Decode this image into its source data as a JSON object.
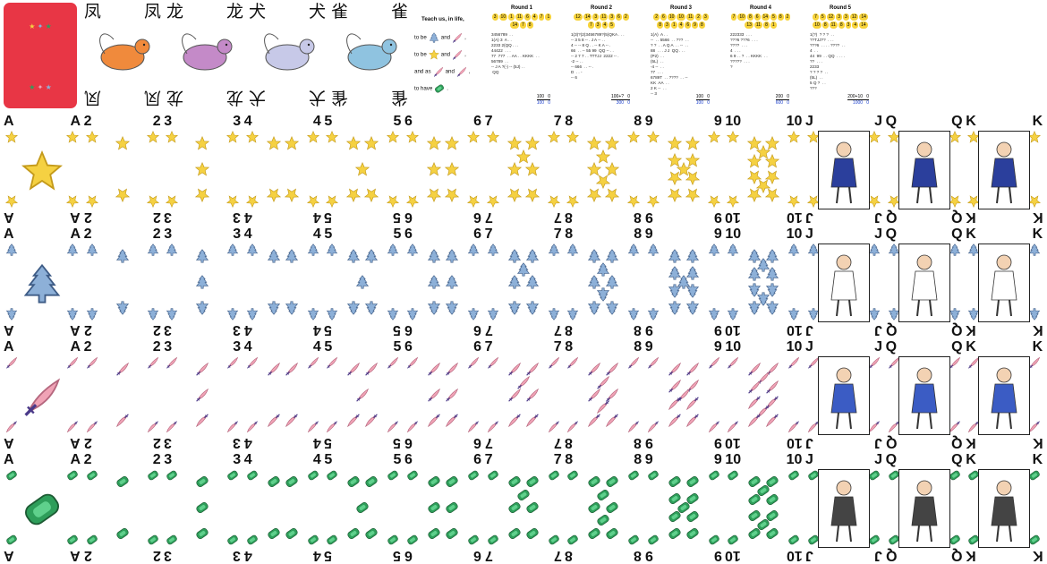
{
  "card_back": {
    "row1": [
      "★",
      "✦",
      "★"
    ],
    "row2": [
      "★",
      "✦",
      "★"
    ]
  },
  "beasts": [
    {
      "glyph": "凤",
      "creature": "phoenix"
    },
    {
      "glyph": "龙",
      "creature": "dragon"
    },
    {
      "glyph": "犬",
      "creature": "dog"
    },
    {
      "glyph": "雀",
      "creature": "sparrow"
    }
  ],
  "motto": {
    "title": "Teach us, in life,",
    "lines": [
      {
        "pre": "to be",
        "post": "and",
        "end": ","
      },
      {
        "pre": "to be",
        "post": "and",
        "end": ","
      },
      {
        "pre": "and as",
        "post": "and",
        "end": ","
      },
      {
        "pre": "to have",
        "post": "",
        "end": "."
      }
    ]
  },
  "rounds": [
    {
      "title": "Round 1",
      "chips": [
        "3",
        "10",
        "1",
        "11",
        "6",
        "4",
        "7",
        "1",
        "14",
        "7",
        "8"
      ],
      "notes": "3456789  . .\n1(A) 3  A . .\n2233 2(QQ . . .\n44422  . . .\n77  777  . . AA . . KKKK  . .\n56789  . .\n-- J A ?(-) -- (5J) . .\n QQ",
      "score_top": "100",
      "score_top_r": "0",
      "score_bottom": "100",
      "score_bottom_r": "0"
    },
    {
      "title": "Round 2",
      "chips": [
        "12",
        "14",
        "3",
        "11",
        "3",
        "6",
        "2",
        "7",
        "3",
        "4",
        "5"
      ],
      "notes": "1(3)?(2)3456789?(5)QKA . . .\n-- 3 5 8 -- . J A -- . .\n4 -- -- 8 Q . . -- K A -- .\n66  . . -- 55 99  QQ -- . .\n-- 2 7 7 . . TTTJJ  2222 -- .\n-2 -- . .\n-- 666  . . -- .\nD  . . -\n-- 6",
      "score_top": "100+?",
      "score_top_r": "0",
      "score_bottom": "300",
      "score_bottom_r": "0"
    },
    {
      "title": "Round 3",
      "chips": [
        "2",
        "6",
        "10",
        "10",
        "11",
        "2",
        "3",
        "8",
        "3",
        "1",
        "4",
        "6",
        "9",
        "8"
      ],
      "notes": "1(A)  A . .\n--  . . 5566  . . ???  . .\n? ?  . . A Q A  . . --  . .\n88  . . . J J  QQ . . .\n(P2)  . .\n(5L)  . .\n-4 --  . .\n77  . . .\n6789T  . . ????  . . --\nKK  AA  . .\n2 K --  . .\n-- 3",
      "score_top": "100",
      "score_top_r": "0",
      "score_bottom": "100",
      "score_bottom_r": "0"
    },
    {
      "title": "Round 4",
      "chips": [
        "7",
        "10",
        "8",
        "6",
        "14",
        "5",
        "8",
        "2",
        "13",
        "11",
        "8",
        "1"
      ],
      "notes": "222333  . . .\n???6 ???6  . . .\n????  . . .\n4  . . .\n6 9 . . ?  . . KKKK  . .\n?????  . . .\n?",
      "score_top": "200",
      "score_top_r": "0",
      "score_bottom": "600",
      "score_bottom_r": "0"
    },
    {
      "title": "Round 5",
      "chips": [
        "7",
        "5",
        "12",
        "3",
        "3",
        "12",
        "14",
        "10",
        "8",
        "11",
        "8",
        "3",
        "4",
        "14"
      ],
      "notes": "1(?)  ? ? ?  . .\n??TJJ??  . . .\n???6  . . . . ????  . .\n4  . .\n44  99  . . QQ  . . . .\n??  . . .\n2233\n? ? ? ?  . .\n(5L)  . .\n5 Q ?  . .\n???",
      "score_top": "200+10",
      "score_top_r": "0",
      "score_bottom": "1000",
      "score_bottom_r": "0"
    }
  ],
  "suits": [
    "star",
    "tree",
    "feather",
    "gem"
  ],
  "ranks": [
    "A",
    "2",
    "3",
    "4",
    "5",
    "6",
    "7",
    "8",
    "9",
    "10",
    "J",
    "Q",
    "K"
  ],
  "colors": {
    "card_back": "#e83645",
    "star": "#f5d142",
    "tree": "#8db0d8",
    "feather": "#f0a3b6",
    "gem": "#2e9e5a",
    "score_blue": "#1a3fcf"
  }
}
